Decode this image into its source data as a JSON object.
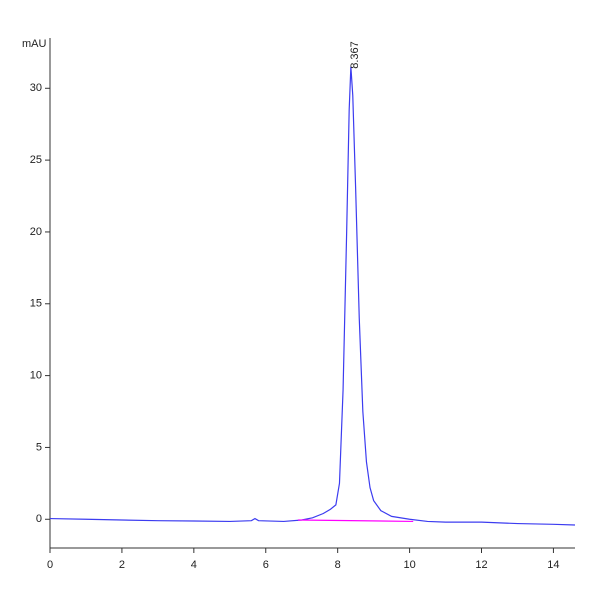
{
  "chart_data": {
    "type": "line",
    "y_label": "mAU",
    "xlim": [
      0,
      14.6
    ],
    "ylim": [
      -2,
      33.5
    ],
    "xticks": [
      0,
      2,
      4,
      6,
      8,
      10,
      12,
      14
    ],
    "yticks": [
      0,
      5,
      10,
      15,
      20,
      25,
      30
    ],
    "series": [
      {
        "name": null,
        "color": "#3c3cf0",
        "x": [
          0,
          1,
          2,
          3,
          4,
          5,
          5.6,
          5.7,
          5.8,
          6.5,
          7.0,
          7.3,
          7.6,
          7.8,
          7.95,
          8.05,
          8.15,
          8.25,
          8.32,
          8.367,
          8.42,
          8.5,
          8.6,
          8.7,
          8.8,
          8.9,
          9.0,
          9.2,
          9.5,
          10,
          10.5,
          11,
          12,
          13,
          14,
          14.6
        ],
        "values": [
          0.05,
          0,
          -0.05,
          -0.1,
          -0.12,
          -0.15,
          -0.1,
          0.05,
          -0.1,
          -0.15,
          -0.05,
          0.1,
          0.4,
          0.7,
          1.0,
          2.5,
          9,
          20,
          28.5,
          31.5,
          29.5,
          23,
          14,
          7.5,
          4,
          2.2,
          1.3,
          0.6,
          0.2,
          0,
          -0.15,
          -0.2,
          -0.2,
          -0.3,
          -0.35,
          -0.4
        ]
      },
      {
        "name": null,
        "color": "#ff00ff",
        "x": [
          6.9,
          10.1
        ],
        "values": [
          -0.05,
          -0.15
        ]
      }
    ],
    "annotations": [
      {
        "text": "8.367",
        "x": 8.367,
        "y": 31.5
      }
    ]
  }
}
